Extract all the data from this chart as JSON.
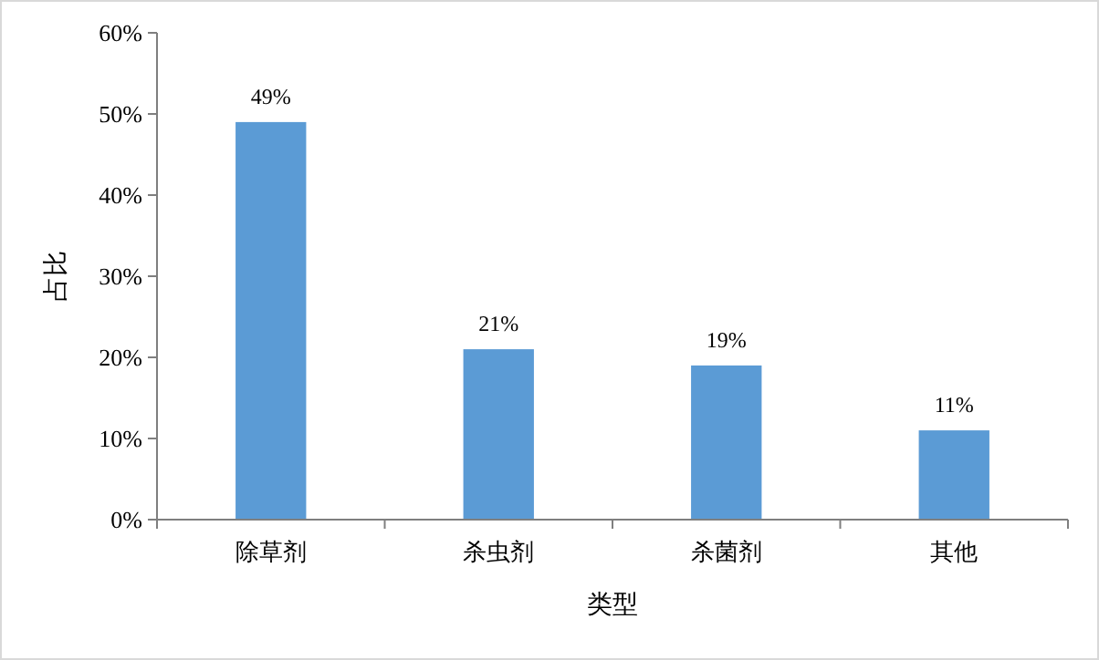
{
  "chart_data": {
    "type": "bar",
    "xlabel": "类型",
    "ylabel": "占比",
    "categories": [
      "除草剂",
      "杀虫剂",
      "杀菌剂",
      "其他"
    ],
    "values": [
      49,
      21,
      19,
      11
    ],
    "color": "#5b9bd5",
    "value_labels": [
      "49%",
      "21%",
      "19%",
      "11%"
    ],
    "ylim": [
      0,
      60
    ],
    "yticks": [
      {
        "value": 0,
        "label": "0%"
      },
      {
        "value": 10,
        "label": "10%"
      },
      {
        "value": 20,
        "label": "20%"
      },
      {
        "value": 30,
        "label": "30%"
      },
      {
        "value": 40,
        "label": "40%"
      },
      {
        "value": 50,
        "label": "50%"
      },
      {
        "value": 60,
        "label": "60%"
      }
    ],
    "grid": false
  }
}
